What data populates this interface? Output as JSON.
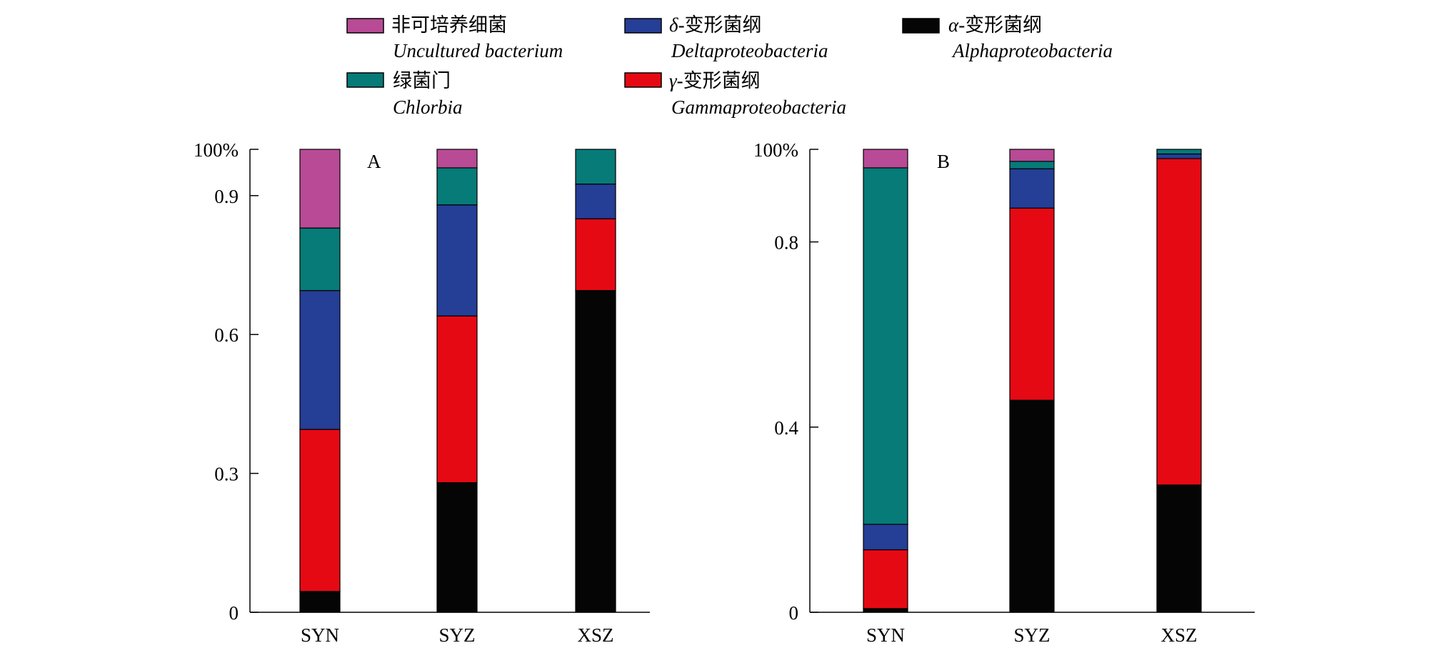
{
  "legend": {
    "items": [
      {
        "cn_prefix": "",
        "cn": "非可培养细菌",
        "latin": "Uncultured bacterium",
        "color": "#b84a96"
      },
      {
        "cn_prefix": "δ",
        "cn": "-变形菌纲",
        "latin": "Deltaproteobacteria",
        "color": "#253e96"
      },
      {
        "cn_prefix": "α",
        "cn": "-变形菌纲",
        "latin": "Alphaproteobacteria",
        "color": "#050505"
      },
      {
        "cn_prefix": "",
        "cn": "绿菌门",
        "latin": "Chlorbia",
        "color": "#067b78"
      },
      {
        "cn_prefix": "γ",
        "cn": "-变形菌纲",
        "latin": "Gammaproteobacteria",
        "color": "#e50914"
      }
    ]
  },
  "chart_data": [
    {
      "type": "bar",
      "stacked": true,
      "panel_label": "A",
      "categories": [
        "SYN",
        "SYZ",
        "XSZ"
      ],
      "yticks": [
        "0",
        "0.3",
        "0.6",
        "0.9",
        "100%"
      ],
      "ytick_values": [
        0,
        0.3,
        0.6,
        0.9,
        1.0
      ],
      "ylim": [
        0,
        1.0
      ],
      "series": [
        {
          "name": "Alphaproteobacteria",
          "color": "#050505",
          "values": [
            0.045,
            0.28,
            0.695
          ]
        },
        {
          "name": "Gammaproteobacteria",
          "color": "#e50914",
          "values": [
            0.35,
            0.36,
            0.155
          ]
        },
        {
          "name": "Deltaproteobacteria",
          "color": "#253e96",
          "values": [
            0.3,
            0.24,
            0.075
          ]
        },
        {
          "name": "Chlorbia",
          "color": "#067b78",
          "values": [
            0.135,
            0.08,
            0.075
          ]
        },
        {
          "name": "Uncultured bacterium",
          "color": "#b84a96",
          "values": [
            0.17,
            0.04,
            0.0
          ]
        }
      ]
    },
    {
      "type": "bar",
      "stacked": true,
      "panel_label": "B",
      "categories": [
        "SYN",
        "SYZ",
        "XSZ"
      ],
      "yticks": [
        "0",
        "0.4",
        "0.8",
        "100%"
      ],
      "ytick_values": [
        0,
        0.4,
        0.8,
        1.0
      ],
      "ylim": [
        0,
        1.0
      ],
      "series": [
        {
          "name": "Alphaproteobacteria",
          "color": "#050505",
          "values": [
            0.008,
            0.458,
            0.275
          ]
        },
        {
          "name": "Gammaproteobacteria",
          "color": "#e50914",
          "values": [
            0.127,
            0.415,
            0.705
          ]
        },
        {
          "name": "Deltaproteobacteria",
          "color": "#253e96",
          "values": [
            0.055,
            0.085,
            0.01
          ]
        },
        {
          "name": "Chlorbia",
          "color": "#067b78",
          "values": [
            0.77,
            0.016,
            0.01
          ]
        },
        {
          "name": "Uncultured bacterium",
          "color": "#b84a96",
          "values": [
            0.04,
            0.026,
            0.0
          ]
        }
      ]
    }
  ]
}
